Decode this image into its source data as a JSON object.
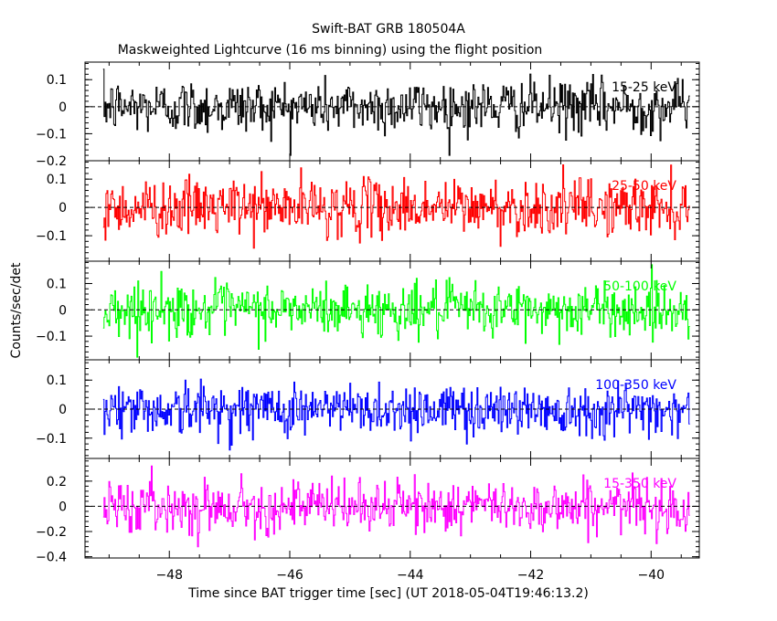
{
  "chart_data": {
    "type": "line",
    "title": "Swift-BAT GRB 180504A",
    "subtitle": "Maskweighted Lightcurve (16 ms binning) using the flight position",
    "xlabel": "Time since BAT trigger time [sec] (UT 2018-05-04T19:46:13.2)",
    "ylabel": "Counts/sec/det",
    "xlim": [
      -49.4,
      -39.2
    ],
    "xticks": [
      -48,
      -46,
      -44,
      -42,
      -40
    ],
    "xtick_labels": [
      "−48",
      "−46",
      "−44",
      "−42",
      "−40"
    ],
    "data_xrange": [
      -49.1,
      -39.35
    ],
    "bin_width": 0.016,
    "zero_line": "dashed",
    "panels": [
      {
        "band": "15-25 keV",
        "color": "#000000",
        "ylim": [
          -0.2,
          0.165
        ],
        "yticks": [
          0.1,
          0,
          -0.1,
          -0.2
        ],
        "ytick_labels": [
          "0.1",
          "0",
          "−0.1",
          "−0.2"
        ],
        "noise_amplitude": 0.05,
        "envelope": [
          -0.18,
          0.16
        ]
      },
      {
        "band": "25-50 keV",
        "color": "#ff0000",
        "ylim": [
          -0.19,
          0.165
        ],
        "yticks": [
          0.1,
          0,
          -0.1
        ],
        "ytick_labels": [
          "0.1",
          "0",
          "−0.1"
        ],
        "noise_amplitude": 0.05,
        "envelope": [
          -0.18,
          0.16
        ]
      },
      {
        "band": "50-100 keV",
        "color": "#00ff00",
        "ylim": [
          -0.19,
          0.185
        ],
        "yticks": [
          0.1,
          0,
          -0.1
        ],
        "ytick_labels": [
          "0.1",
          "0",
          "−0.1"
        ],
        "noise_amplitude": 0.05,
        "envelope": [
          -0.18,
          0.18
        ]
      },
      {
        "band": "100-350 keV",
        "color": "#0000ff",
        "ylim": [
          -0.17,
          0.17
        ],
        "yticks": [
          0.1,
          0,
          -0.1
        ],
        "ytick_labels": [
          "0.1",
          "0",
          "−0.1"
        ],
        "noise_amplitude": 0.045,
        "envelope": [
          -0.16,
          0.16
        ]
      },
      {
        "band": "15-350 keV",
        "color": "#ff00ff",
        "ylim": [
          -0.41,
          0.38
        ],
        "yticks": [
          0.2,
          0,
          -0.2,
          -0.4
        ],
        "ytick_labels": [
          "0.2",
          "0",
          "−0.2",
          "−0.4"
        ],
        "noise_amplitude": 0.1,
        "envelope": [
          -0.4,
          0.35
        ]
      }
    ]
  }
}
